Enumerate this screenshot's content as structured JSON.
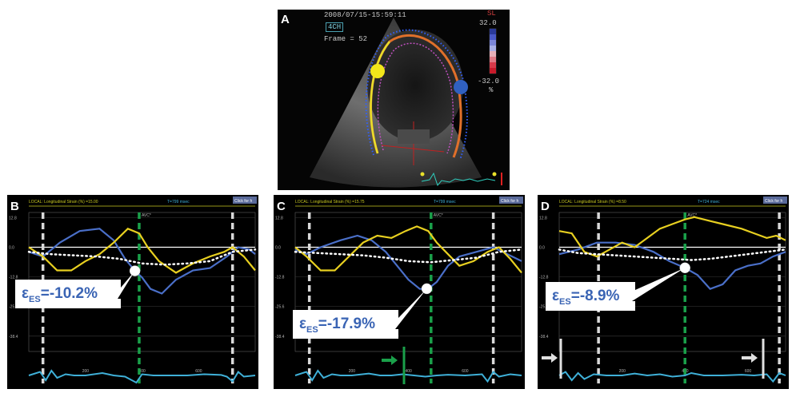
{
  "echo": {
    "label": "A",
    "timestamp": "2008/07/15-15:59:11",
    "view": "4CH",
    "frame": "Frame = 52",
    "scale_title": "SL",
    "scale_max": "32.0",
    "scale_min": "-32.0",
    "scale_unit": "%",
    "colorbar": [
      "#2a3a9a",
      "#4a5ac8",
      "#7b86d8",
      "#a9b0e6",
      "#e6b0b8",
      "#e07a86",
      "#d83a4a",
      "#c81a2a"
    ]
  },
  "colors": {
    "blue_curve": "#4a6fc8",
    "yellow_curve": "#e8d020",
    "cyan_ecg": "#3fb0d8",
    "green_avc": "#1aa04a",
    "callout_text": "#3a64b4",
    "header_line": "#c8c820"
  },
  "chart_data": [
    {
      "type": "line",
      "panel_label": "B",
      "header_left": "LOCAL: Longitudinal Strain (%) =15.00",
      "header_right": "T=799 msec",
      "header_button": "Click for h",
      "avc_label": "AVC*",
      "y_ticks": [
        "12.8",
        "0.0",
        "-12.8",
        "-25.6",
        "-38.4"
      ],
      "x_ticks": [
        "200",
        "400",
        "600"
      ],
      "ylim": [
        -45,
        15
      ],
      "xlim": [
        0,
        800
      ],
      "avc_x": 390,
      "markers_x": [
        50,
        720
      ],
      "callout": {
        "epsilon": "ε",
        "sub": "ES",
        "value": "=-10.2%"
      },
      "callout_point": {
        "x": 375,
        "y": -10.2
      },
      "series": [
        {
          "color": "blue",
          "x": [
            0,
            50,
            110,
            180,
            250,
            300,
            340,
            375,
            400,
            430,
            470,
            520,
            580,
            640,
            700,
            740,
            780,
            800
          ],
          "y": [
            -2,
            -4,
            2,
            7,
            8,
            3,
            -5,
            -10.2,
            -13,
            -18,
            -20,
            -14,
            -10,
            -9,
            -4,
            0,
            -1,
            -3
          ]
        },
        {
          "color": "yellow",
          "x": [
            0,
            50,
            100,
            150,
            200,
            250,
            300,
            350,
            390,
            420,
            460,
            520,
            580,
            640,
            690,
            720,
            760,
            800
          ],
          "y": [
            0,
            -4,
            -10,
            -10,
            -6,
            -3,
            2,
            8,
            6,
            0,
            -6,
            -11,
            -7,
            -4,
            -2,
            0,
            -4,
            -10
          ]
        },
        {
          "color": "white-dotted",
          "x": [
            0,
            80,
            160,
            240,
            320,
            400,
            480,
            560,
            640,
            720,
            800
          ],
          "y": [
            -2,
            -3,
            -3.5,
            -4,
            -5,
            -7,
            -7.5,
            -7,
            -6,
            -2,
            -1
          ]
        }
      ],
      "ecg": {
        "x": [
          0,
          40,
          60,
          80,
          100,
          130,
          160,
          200,
          260,
          300,
          340,
          380,
          400,
          440,
          500,
          560,
          620,
          680,
          700,
          720,
          740,
          760,
          800
        ],
        "y": [
          0,
          1.5,
          -2,
          2,
          -1,
          0.5,
          0,
          0,
          1,
          0,
          -0.5,
          -3,
          0.5,
          0,
          0,
          0,
          0.5,
          0.2,
          -0.5,
          -2.5,
          1.5,
          -0.5,
          0
        ]
      }
    },
    {
      "type": "line",
      "panel_label": "C",
      "header_left": "LOCAL: Longitudinal Strain (%) =15.75",
      "header_right": "T=799 msec",
      "header_button": "Click for h",
      "avc_label": "AVC*",
      "y_ticks": [
        "12.8",
        "0.0",
        "-12.8",
        "-25.6",
        "-38.4"
      ],
      "x_ticks": [
        "200",
        "400",
        "600"
      ],
      "ylim": [
        -45,
        15
      ],
      "xlim": [
        0,
        800
      ],
      "avc_x": 480,
      "markers_x": [
        50,
        700
      ],
      "callout": {
        "epsilon": "ε",
        "sub": "ES",
        "value": "=-17.9%"
      },
      "callout_point": {
        "x": 465,
        "y": -17.9
      },
      "series": [
        {
          "color": "blue",
          "x": [
            0,
            40,
            90,
            160,
            220,
            270,
            320,
            360,
            400,
            440,
            470,
            500,
            540,
            580,
            640,
            700,
            750,
            800
          ],
          "y": [
            -1,
            -3,
            0,
            3,
            5,
            3,
            -2,
            -8,
            -14,
            -18,
            -17.9,
            -15,
            -8,
            -4,
            -2,
            0,
            -3,
            -6
          ]
        },
        {
          "color": "yellow",
          "x": [
            0,
            40,
            90,
            140,
            190,
            240,
            290,
            340,
            390,
            430,
            470,
            500,
            540,
            580,
            630,
            680,
            720,
            760,
            800
          ],
          "y": [
            0,
            -4,
            -10,
            -10,
            -4,
            2,
            5,
            4,
            7,
            9,
            7,
            2,
            -3,
            -8,
            -6,
            -2,
            0,
            -5,
            -11
          ]
        },
        {
          "color": "white-dotted",
          "x": [
            0,
            80,
            160,
            240,
            320,
            400,
            480,
            560,
            640,
            720,
            800
          ],
          "y": [
            -2,
            -2.5,
            -3,
            -3.5,
            -4.5,
            -6,
            -6.5,
            -5.5,
            -4.5,
            -2,
            -1
          ]
        }
      ],
      "ecg": {
        "x": [
          0,
          40,
          60,
          80,
          100,
          130,
          160,
          200,
          260,
          300,
          340,
          380,
          420,
          460,
          500,
          540,
          600,
          660,
          680,
          700,
          720,
          760,
          800
        ],
        "y": [
          0,
          1.5,
          -2,
          2,
          -1,
          0.5,
          0,
          0,
          0.8,
          0,
          0,
          0.5,
          0,
          -0.5,
          0,
          0.3,
          0,
          0.5,
          -2.5,
          1.5,
          -0.5,
          0.5,
          0
        ]
      }
    },
    {
      "type": "line",
      "panel_label": "D",
      "header_left": "LOCAL: Longitudinal Strain (%) =8.50",
      "header_right": "T=724 msec",
      "header_button": "Click for h",
      "avc_label": "AVC*",
      "y_ticks": [
        "12.8",
        "0.0",
        "-12.8",
        "-25.6",
        "-38.4"
      ],
      "x_ticks": [
        "200",
        "400",
        "600"
      ],
      "ylim": [
        -45,
        15
      ],
      "xlim": [
        0,
        720
      ],
      "avc_x": 400,
      "markers_x": [
        125,
        700
      ],
      "callout": {
        "epsilon": "ε",
        "sub": "ES",
        "value": "=-8.9%"
      },
      "callout_point": {
        "x": 400,
        "y": -8.9
      },
      "series": [
        {
          "color": "blue",
          "x": [
            0,
            60,
            120,
            180,
            240,
            300,
            350,
            400,
            440,
            480,
            520,
            560,
            600,
            640,
            680,
            720
          ],
          "y": [
            -3,
            -1,
            2,
            2,
            1,
            -2,
            -6,
            -8.9,
            -12,
            -18,
            -16,
            -10,
            -8,
            -7,
            -4,
            -2
          ]
        },
        {
          "color": "yellow",
          "x": [
            0,
            40,
            80,
            120,
            160,
            200,
            240,
            280,
            320,
            360,
            400,
            430,
            460,
            520,
            580,
            620,
            660,
            690,
            720
          ],
          "y": [
            7,
            6,
            -2,
            -4,
            -1,
            2,
            0,
            4,
            8,
            10,
            12,
            13,
            12,
            10,
            8,
            6,
            4,
            5,
            3
          ]
        },
        {
          "color": "white-dotted",
          "x": [
            0,
            60,
            120,
            180,
            240,
            300,
            360,
            420,
            480,
            540,
            600,
            660,
            720
          ],
          "y": [
            -1,
            -2.5,
            -3,
            -3.5,
            -4,
            -4.5,
            -5,
            -5.5,
            -5,
            -4,
            -3,
            -2,
            -1
          ]
        }
      ],
      "ecg": {
        "x": [
          0,
          20,
          40,
          60,
          80,
          110,
          150,
          200,
          240,
          280,
          320,
          360,
          400,
          420,
          460,
          520,
          580,
          620,
          660,
          680,
          700,
          720
        ],
        "y": [
          0,
          1.5,
          -2,
          1,
          -1.5,
          0.5,
          0,
          0,
          0.8,
          0,
          0.5,
          -0.5,
          0,
          1,
          0,
          0,
          0.3,
          0,
          0.5,
          -2.5,
          1,
          0
        ]
      }
    }
  ]
}
